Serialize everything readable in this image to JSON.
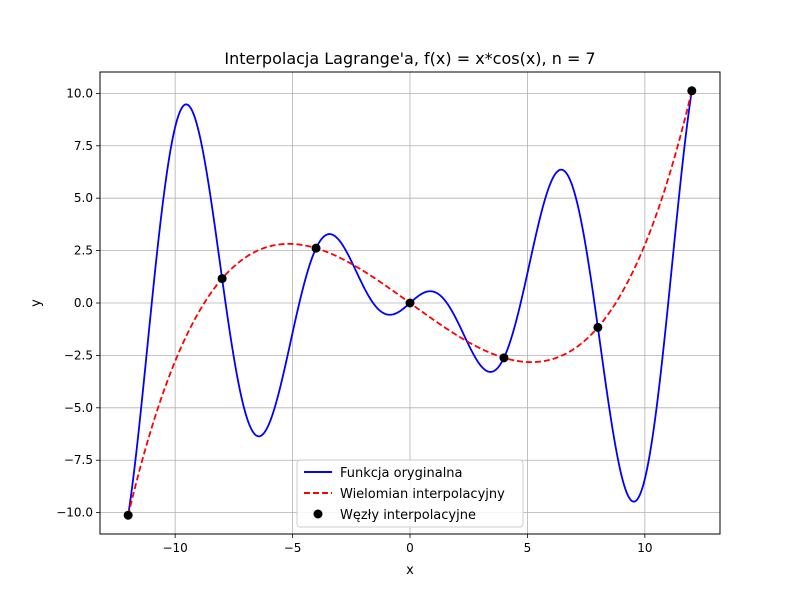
{
  "chart_data": {
    "type": "line",
    "title": "Interpolacja Lagrange'a, f(x) = x*cos(x), n = 7",
    "xlabel": "x",
    "ylabel": "y",
    "xlim": [
      -13.2,
      13.2
    ],
    "ylim": [
      -11.02,
      11.02
    ],
    "grid": true,
    "legend_position": "bottom-center",
    "x_ticks": [
      -10,
      -5,
      0,
      5,
      10
    ],
    "x_tick_labels": [
      "−10",
      "−5",
      "0",
      "5",
      "10"
    ],
    "y_ticks": [
      -10.0,
      -7.5,
      -5.0,
      -2.5,
      0.0,
      2.5,
      5.0,
      7.5,
      10.0
    ],
    "y_tick_labels": [
      "−10.0",
      "−7.5",
      "−5.0",
      "−2.5",
      "0.0",
      "2.5",
      "5.0",
      "7.5",
      "10.0"
    ],
    "function": "x*cos(x)",
    "x_range": [
      -12,
      12
    ],
    "series": [
      {
        "name": "Funkcja oryginalna",
        "kind": "line",
        "color": "#0000ff",
        "style": "solid",
        "source": "f(x) = x*cos(x) on [-12, 12]"
      },
      {
        "name": "Wielomian interpolacyjny",
        "kind": "line",
        "color": "#ff0000",
        "style": "dashed",
        "source": "Lagrange polynomial through nodes"
      },
      {
        "name": "Węzły interpolacyjne",
        "kind": "scatter",
        "color": "#000000",
        "x": [
          -12,
          -8,
          -4,
          0,
          4,
          8,
          12
        ],
        "y": [
          -10.125,
          1.164,
          2.615,
          0.0,
          -2.615,
          -1.164,
          10.125
        ]
      }
    ]
  }
}
